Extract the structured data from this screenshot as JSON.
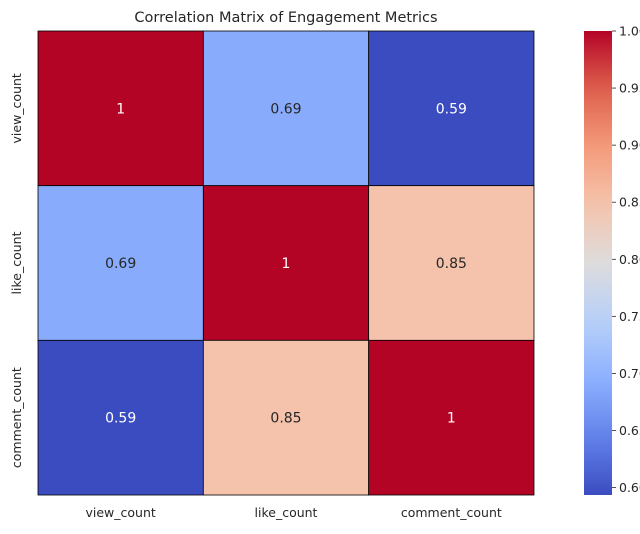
{
  "chart_data": {
    "type": "heatmap",
    "title": "Correlation Matrix of Engagement Metrics",
    "xlabel": "",
    "ylabel": "",
    "x_categories": [
      "view_count",
      "like_count",
      "comment_count"
    ],
    "y_categories": [
      "view_count",
      "like_count",
      "comment_count"
    ],
    "values": [
      [
        1.0,
        0.69,
        0.59
      ],
      [
        0.69,
        1.0,
        0.85
      ],
      [
        0.59,
        0.85,
        1.0
      ]
    ],
    "annotations": [
      [
        "1",
        "0.69",
        "0.59"
      ],
      [
        "0.69",
        "1",
        "0.85"
      ],
      [
        "0.59",
        "0.85",
        "1"
      ]
    ],
    "colormap": "coolwarm",
    "colorbar": {
      "min": 0.5935,
      "max": 1.0,
      "ticks": [
        "0.60",
        "0.65",
        "0.70",
        "0.75",
        "0.80",
        "0.85",
        "0.90",
        "0.95",
        "1.00"
      ]
    },
    "cell_border_color": "#000000",
    "grid": false
  }
}
